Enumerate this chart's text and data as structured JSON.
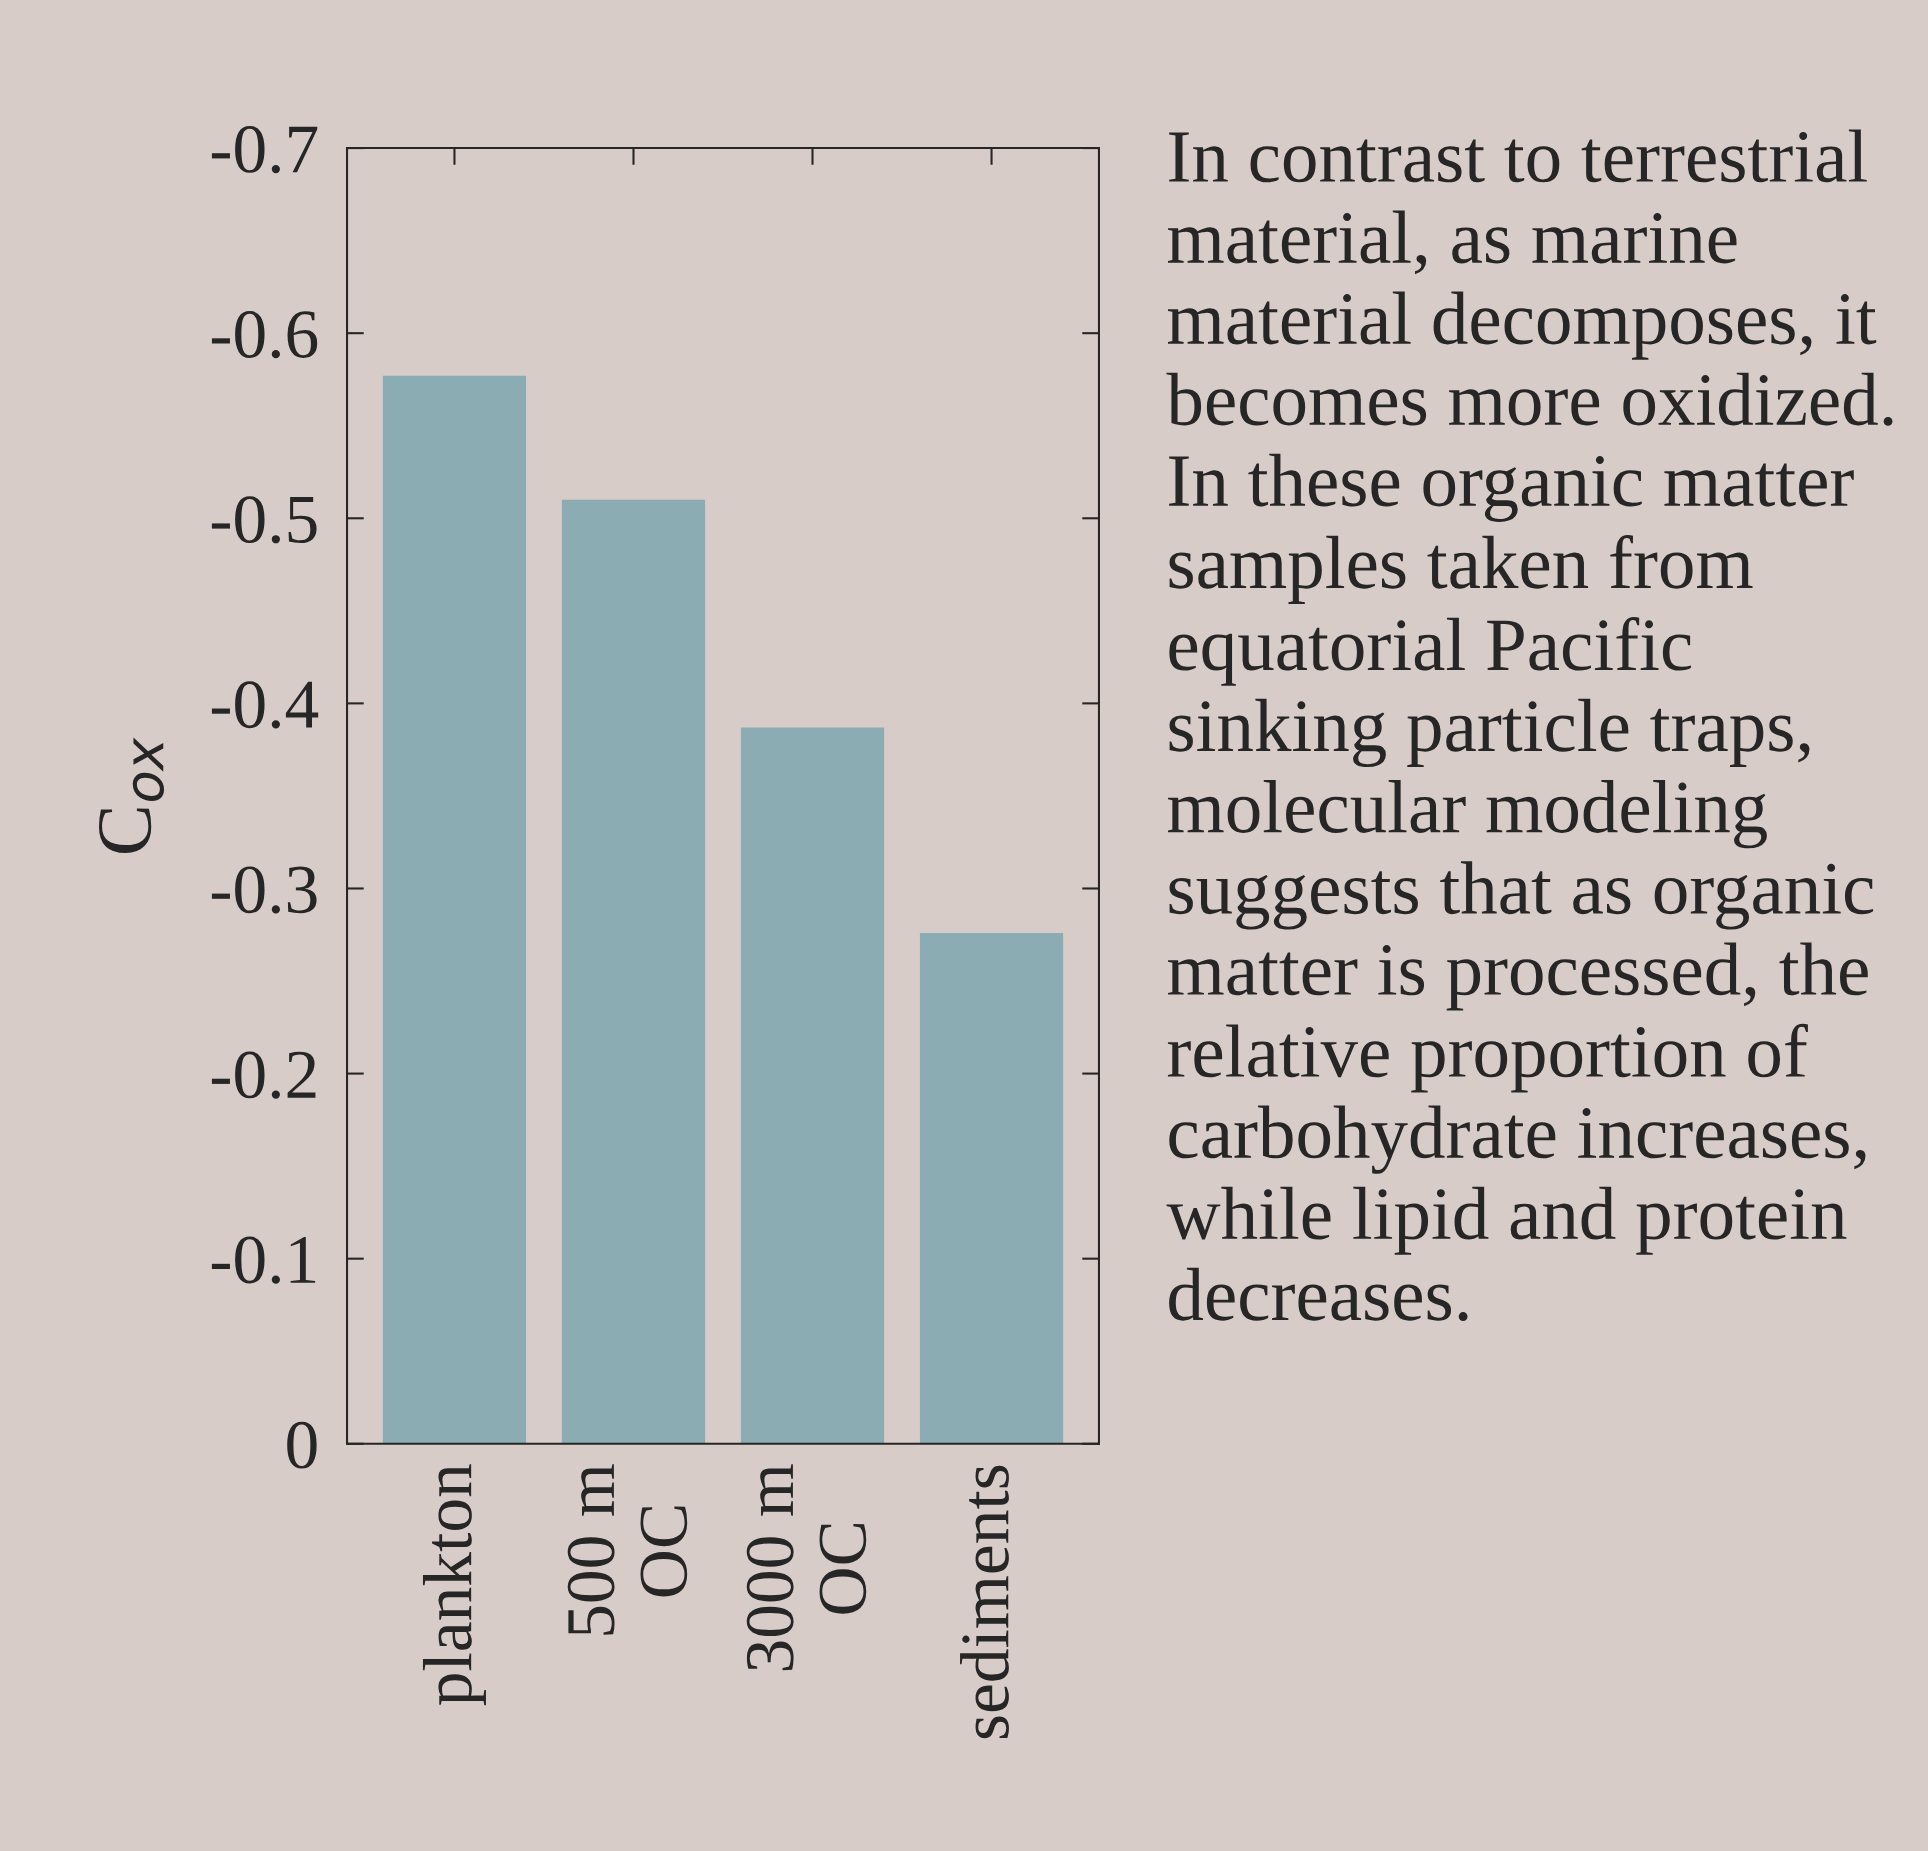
{
  "chart_data": {
    "type": "bar",
    "ylabel": "C$_{ox}$",
    "categories": [
      "plankton",
      "500 m\nOC",
      "3000 m\nOC",
      "sediments"
    ],
    "values": [
      -0.577,
      -0.51,
      -0.387,
      -0.276
    ],
    "color": "#8aacb2",
    "ylim": [
      0,
      -0.7
    ],
    "yticks": [
      0,
      -0.1,
      -0.2,
      -0.3,
      -0.4,
      -0.5,
      -0.6,
      -0.7
    ],
    "grid": false,
    "annotations": [
      "In contrast to terrestrial material, as marine material decomposes, it becomes more oxidized.  In these organic matter samples taken from equatorial Pacific sinking particle traps, molecular modeling suggests that as organic matter is processed, the relative proportion of carbohydrate increases, while lipid and protein decreases."
    ]
  }
}
